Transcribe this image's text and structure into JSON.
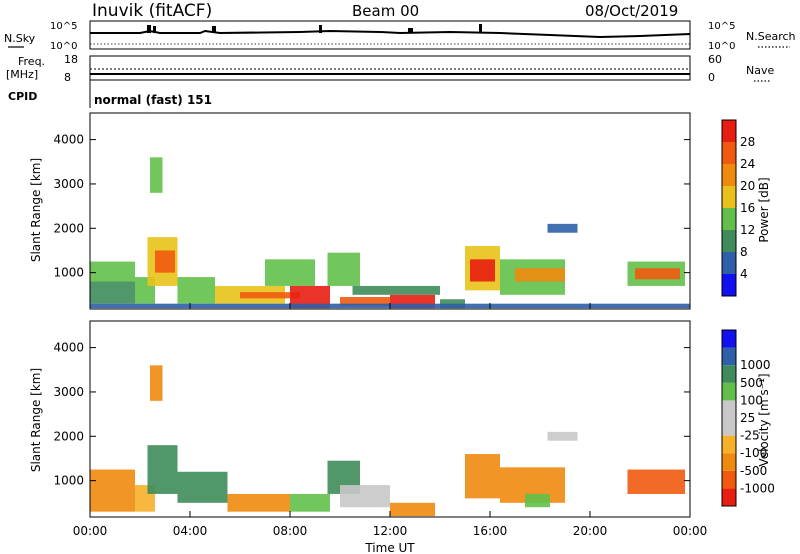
{
  "header": {
    "station": "Inuvik (fitACF)",
    "beam": "Beam 00",
    "date": "08/Oct/2019"
  },
  "strips": {
    "nsky_label": "N.Sky",
    "nsky_top": "10^5",
    "nsky_bottom": "10^0",
    "nsky_right_top": "10^5",
    "nsky_right_bottom": "10^0",
    "nsearch_label": "N.Search",
    "freq_label": "Freq.",
    "freq_unit": "[MHz]",
    "freq_top": "18",
    "freq_bottom": "8",
    "nave_top": "60",
    "nave_bottom": "0",
    "nave_label": "Nave",
    "cpid_label": "CPID",
    "cpid_value": "normal (fast) 151"
  },
  "colors": {
    "power": [
      "#1010f0",
      "#2e5fa8",
      "#3f8c5a",
      "#62c04a",
      "#e8c21a",
      "#f08a0f",
      "#ef5a0e",
      "#e81e12"
    ],
    "velocity": [
      "#e81e12",
      "#ef5a0e",
      "#f08a0f",
      "#f6b02a",
      "#c8c8c8",
      "#c8c8c8",
      "#62c04a",
      "#3f8c5a",
      "#2e5fa8",
      "#1010f0"
    ]
  },
  "chart_data": [
    {
      "type": "heatmap",
      "name": "power",
      "ylabel": "Slant Range [km]",
      "yticks": [
        "1000",
        "2000",
        "3000",
        "4000"
      ],
      "ylim": [
        180,
        4600
      ],
      "xticks": [
        "00:00",
        "04:00",
        "08:00",
        "12:00",
        "16:00",
        "20:00",
        "00:00"
      ],
      "colorbar_label": "Power [dB]",
      "colorbar_ticks": [
        "4",
        "8",
        "12",
        "16",
        "20",
        "24",
        "28"
      ],
      "color_range": [
        0,
        32
      ],
      "cells": [
        {
          "t0": 0.0,
          "t1": 1.8,
          "r0": 300,
          "r1": 800,
          "level": 2
        },
        {
          "t0": 0.0,
          "t1": 1.8,
          "r0": 800,
          "r1": 1250,
          "level": 3
        },
        {
          "t0": 1.8,
          "t1": 2.6,
          "r0": 300,
          "r1": 900,
          "level": 3
        },
        {
          "t0": 2.3,
          "t1": 3.5,
          "r0": 700,
          "r1": 1800,
          "level": 4
        },
        {
          "t0": 2.6,
          "t1": 3.4,
          "r0": 1000,
          "r1": 1500,
          "level": 6
        },
        {
          "t0": 2.4,
          "t1": 2.9,
          "r0": 2800,
          "r1": 3600,
          "level": 3
        },
        {
          "t0": 3.5,
          "t1": 5.0,
          "r0": 300,
          "r1": 900,
          "level": 3
        },
        {
          "t0": 5.0,
          "t1": 7.8,
          "r0": 300,
          "r1": 700,
          "level": 4
        },
        {
          "t0": 6.0,
          "t1": 8.4,
          "r0": 420,
          "r1": 560,
          "level": 6
        },
        {
          "t0": 7.0,
          "t1": 9.0,
          "r0": 700,
          "r1": 1300,
          "level": 3
        },
        {
          "t0": 8.0,
          "t1": 9.6,
          "r0": 200,
          "r1": 700,
          "level": 7
        },
        {
          "t0": 9.5,
          "t1": 10.8,
          "r0": 700,
          "r1": 1450,
          "level": 3
        },
        {
          "t0": 10.0,
          "t1": 12.0,
          "r0": 250,
          "r1": 450,
          "level": 6
        },
        {
          "t0": 12.0,
          "t1": 13.8,
          "r0": 200,
          "r1": 500,
          "level": 7
        },
        {
          "t0": 10.5,
          "t1": 14.0,
          "r0": 500,
          "r1": 700,
          "level": 2
        },
        {
          "t0": 14.0,
          "t1": 15.0,
          "r0": 200,
          "r1": 400,
          "level": 2
        },
        {
          "t0": 15.0,
          "t1": 16.4,
          "r0": 600,
          "r1": 1600,
          "level": 4
        },
        {
          "t0": 15.2,
          "t1": 16.2,
          "r0": 800,
          "r1": 1300,
          "level": 7
        },
        {
          "t0": 16.4,
          "t1": 19.0,
          "r0": 500,
          "r1": 1300,
          "level": 3
        },
        {
          "t0": 17.0,
          "t1": 19.0,
          "r0": 800,
          "r1": 1100,
          "level": 5
        },
        {
          "t0": 18.3,
          "t1": 19.5,
          "r0": 1900,
          "r1": 2100,
          "level": 1
        },
        {
          "t0": 21.5,
          "t1": 23.8,
          "r0": 700,
          "r1": 1250,
          "level": 3
        },
        {
          "t0": 21.8,
          "t1": 23.6,
          "r0": 850,
          "r1": 1100,
          "level": 6
        },
        {
          "t0": 0.0,
          "t1": 24.0,
          "r0": 200,
          "r1": 300,
          "level": 1
        }
      ]
    },
    {
      "type": "heatmap",
      "name": "velocity",
      "ylabel": "Slant Range [km]",
      "yticks": [
        "1000",
        "2000",
        "3000",
        "4000"
      ],
      "ylim": [
        180,
        4600
      ],
      "xticks": [
        "00:00",
        "04:00",
        "08:00",
        "12:00",
        "16:00",
        "20:00",
        "00:00"
      ],
      "xlabel": "Time UT",
      "colorbar_label": "Velocity [m s⁻¹]",
      "colorbar_ticks": [
        "-1000",
        "-500",
        "-100",
        "-25",
        "25",
        "100",
        "500",
        "1000"
      ],
      "cells": [
        {
          "t0": 0.0,
          "t1": 1.8,
          "r0": 300,
          "r1": 800,
          "level": 2
        },
        {
          "t0": 0.0,
          "t1": 1.8,
          "r0": 800,
          "r1": 1250,
          "level": 2
        },
        {
          "t0": 1.8,
          "t1": 2.6,
          "r0": 300,
          "r1": 900,
          "level": 3
        },
        {
          "t0": 2.3,
          "t1": 3.5,
          "r0": 700,
          "r1": 1800,
          "level": 7
        },
        {
          "t0": 2.4,
          "t1": 2.9,
          "r0": 2800,
          "r1": 3600,
          "level": 2
        },
        {
          "t0": 3.5,
          "t1": 5.5,
          "r0": 500,
          "r1": 1200,
          "level": 7
        },
        {
          "t0": 5.5,
          "t1": 8.0,
          "r0": 300,
          "r1": 700,
          "level": 2
        },
        {
          "t0": 8.0,
          "t1": 9.6,
          "r0": 300,
          "r1": 700,
          "level": 6
        },
        {
          "t0": 9.5,
          "t1": 10.8,
          "r0": 700,
          "r1": 1450,
          "level": 7
        },
        {
          "t0": 10.0,
          "t1": 12.0,
          "r0": 400,
          "r1": 900,
          "level": 4
        },
        {
          "t0": 12.0,
          "t1": 13.8,
          "r0": 200,
          "r1": 500,
          "level": 2
        },
        {
          "t0": 15.0,
          "t1": 16.4,
          "r0": 600,
          "r1": 1600,
          "level": 2
        },
        {
          "t0": 16.4,
          "t1": 19.0,
          "r0": 500,
          "r1": 1300,
          "level": 2
        },
        {
          "t0": 17.4,
          "t1": 18.4,
          "r0": 400,
          "r1": 700,
          "level": 6
        },
        {
          "t0": 18.3,
          "t1": 19.5,
          "r0": 1900,
          "r1": 2100,
          "level": 4
        },
        {
          "t0": 21.5,
          "t1": 23.8,
          "r0": 700,
          "r1": 1250,
          "level": 1
        }
      ]
    }
  ]
}
